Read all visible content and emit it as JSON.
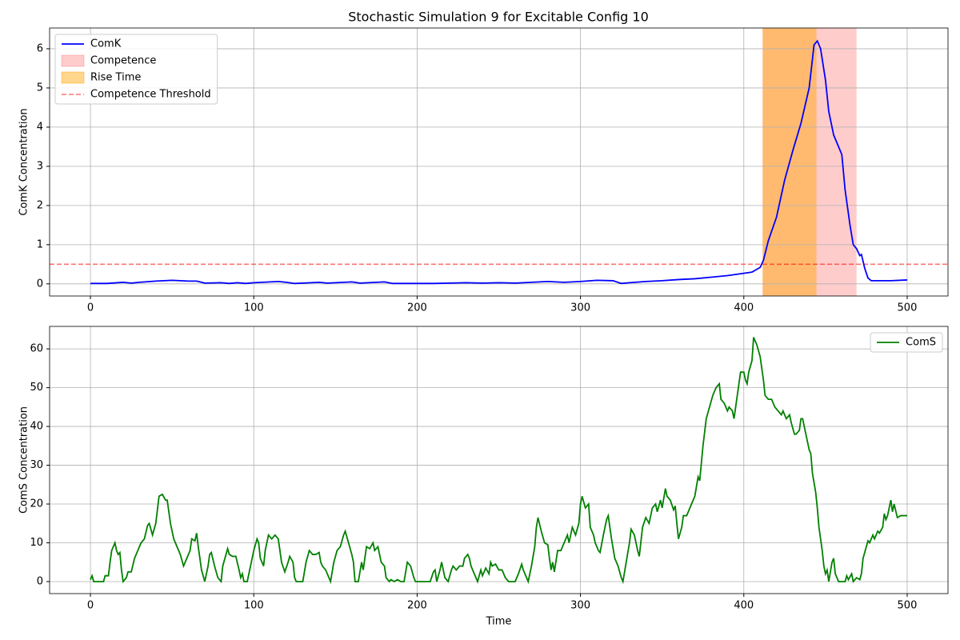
{
  "chart_data": [
    {
      "type": "line",
      "title": "Stochastic Simulation 9 for Excitable Config 10",
      "ylabel": "ComK Concentration",
      "x": [
        0,
        10,
        20,
        25,
        30,
        40,
        50,
        60,
        65,
        70,
        80,
        85,
        90,
        95,
        100,
        110,
        115,
        120,
        125,
        130,
        140,
        145,
        150,
        160,
        165,
        170,
        180,
        185,
        190,
        200,
        210,
        220,
        230,
        240,
        250,
        260,
        270,
        280,
        290,
        300,
        310,
        320,
        325,
        330,
        340,
        350,
        360,
        370,
        380,
        390,
        400,
        405,
        410,
        412,
        415,
        420,
        425,
        430,
        435,
        440,
        443,
        445,
        447,
        450,
        452,
        455,
        457,
        460,
        462,
        465,
        467,
        469,
        471,
        472,
        474,
        476,
        478,
        480,
        490,
        500
      ],
      "series": [
        {
          "name": "ComK",
          "color": "#0000ff",
          "values": [
            0.01,
            0.01,
            0.04,
            0.02,
            0.04,
            0.07,
            0.09,
            0.07,
            0.07,
            0.02,
            0.03,
            0.01,
            0.03,
            0.01,
            0.03,
            0.05,
            0.06,
            0.04,
            0.01,
            0.02,
            0.04,
            0.02,
            0.03,
            0.05,
            0.02,
            0.03,
            0.05,
            0.01,
            0.01,
            0.01,
            0.01,
            0.02,
            0.03,
            0.02,
            0.03,
            0.02,
            0.04,
            0.06,
            0.04,
            0.06,
            0.09,
            0.08,
            0.01,
            0.03,
            0.06,
            0.08,
            0.11,
            0.13,
            0.17,
            0.21,
            0.27,
            0.3,
            0.42,
            0.6,
            1.1,
            1.7,
            2.65,
            3.4,
            4.1,
            5.0,
            6.1,
            6.2,
            6.0,
            5.2,
            4.4,
            3.8,
            3.6,
            3.3,
            2.4,
            1.5,
            1.0,
            0.9,
            0.72,
            0.75,
            0.4,
            0.15,
            0.08,
            0.08,
            0.08,
            0.1
          ]
        }
      ],
      "spans": [
        {
          "name": "Competence",
          "color": "#ff0000",
          "alpha": 0.2,
          "xlim": [
            411.5,
            469
          ]
        },
        {
          "name": "Rise Time",
          "color": "#ffa500",
          "alpha": 0.45,
          "xlim": [
            411.5,
            444.5
          ]
        }
      ],
      "threshold": {
        "name": "Competence Threshold",
        "value": 0.5,
        "color": "#ff0000",
        "alpha": 0.55
      },
      "xlim": [
        -25,
        525
      ],
      "ylim": [
        -0.31,
        6.53
      ],
      "xticks": [
        0,
        100,
        200,
        300,
        400,
        500
      ],
      "yticks": [
        0,
        1,
        2,
        3,
        4,
        5,
        6
      ],
      "grid": true,
      "legend": "upper left"
    },
    {
      "type": "line",
      "xlabel": "Time",
      "ylabel": "ComS Concentration",
      "x": [
        0,
        1,
        2,
        5,
        8,
        9,
        11,
        12,
        13,
        15,
        16,
        17,
        18,
        19,
        20,
        22,
        23,
        25,
        27,
        29,
        31,
        33,
        35,
        36,
        38,
        40,
        42,
        44,
        46,
        47,
        49,
        51,
        53,
        55,
        57,
        59,
        61,
        62,
        64,
        65,
        66,
        68,
        70,
        72,
        73,
        74,
        76,
        78,
        80,
        81,
        83,
        84,
        85,
        87,
        89,
        91,
        92,
        93,
        94,
        96,
        98,
        100,
        102,
        103,
        104,
        106,
        107,
        109,
        111,
        113,
        115,
        117,
        119,
        121,
        122,
        124,
        125,
        126,
        130,
        132,
        134,
        136,
        138,
        140,
        141,
        142,
        144,
        146,
        147,
        149,
        151,
        153,
        155,
        156,
        158,
        160,
        161,
        162,
        164,
        166,
        167,
        169,
        171,
        173,
        174,
        176,
        178,
        180,
        181,
        183,
        184,
        186,
        188,
        190,
        192,
        194,
        196,
        198,
        199,
        204,
        208,
        210,
        211,
        212,
        214,
        215,
        217,
        219,
        221,
        222,
        224,
        226,
        228,
        229,
        231,
        232,
        233,
        235,
        237,
        239,
        240,
        242,
        244,
        245,
        246,
        248,
        250,
        252,
        254,
        256,
        260,
        262,
        264,
        265,
        267,
        268,
        270,
        272,
        273,
        274,
        276,
        278,
        280,
        281,
        282,
        283,
        284,
        286,
        288,
        290,
        292,
        293,
        295,
        297,
        299,
        300,
        301,
        303,
        305,
        306,
        308,
        309,
        311,
        312,
        314,
        316,
        317,
        319,
        321,
        323,
        325,
        326,
        328,
        330,
        331,
        333,
        335,
        336,
        338,
        340,
        342,
        344,
        346,
        347,
        349,
        350,
        352,
        353,
        355,
        357,
        358,
        359,
        360,
        362,
        363,
        365,
        366,
        368,
        370,
        372,
        373,
        375,
        377,
        379,
        381,
        383,
        385,
        386,
        388,
        390,
        391,
        393,
        394,
        396,
        398,
        400,
        401,
        402,
        403,
        405,
        406,
        408,
        410,
        411,
        412,
        413,
        415,
        417,
        419,
        421,
        423,
        424,
        426,
        428,
        429,
        431,
        432,
        434,
        435,
        436,
        438,
        440,
        441,
        442,
        444,
        445,
        446,
        448,
        449,
        450,
        451,
        452,
        454,
        455,
        456,
        458,
        462,
        463,
        464,
        466,
        467,
        469,
        471,
        472,
        473,
        475,
        476,
        477,
        479,
        480,
        482,
        483,
        485,
        486,
        487,
        488,
        490,
        491,
        492,
        494,
        496,
        498,
        500
      ],
      "series": [
        {
          "name": "ComS",
          "color": "#008000",
          "values": [
            0.5,
            1.5,
            0,
            0,
            0,
            1.5,
            1.5,
            5,
            8,
            10,
            8,
            7,
            7.5,
            3,
            0,
            1,
            2.5,
            2.5,
            6,
            8,
            10,
            11,
            14.5,
            15,
            12,
            15,
            22,
            22.5,
            21,
            21,
            15,
            11,
            9,
            7,
            4,
            6,
            8,
            11,
            10.5,
            12.5,
            9,
            3,
            0,
            4,
            7,
            7.5,
            4,
            1,
            0,
            4,
            7,
            8.5,
            7,
            6.5,
            6.5,
            3,
            1,
            2,
            0,
            0,
            4,
            8,
            11,
            10,
            6,
            4,
            8,
            12,
            11,
            12,
            11,
            5,
            2.5,
            5,
            6.5,
            5,
            1,
            0,
            0,
            5,
            8,
            7,
            7,
            7.5,
            5,
            4,
            3,
            1,
            0,
            5,
            8,
            9,
            12,
            13,
            10,
            7,
            5,
            0,
            0,
            5,
            3,
            9,
            8.5,
            10,
            8,
            9,
            5,
            4,
            1,
            0,
            0.5,
            0,
            0.5,
            0,
            0,
            5,
            4,
            1,
            0,
            0,
            0,
            2.5,
            3,
            0,
            3,
            5,
            1,
            0,
            3,
            4,
            3,
            4,
            4,
            6,
            7,
            6,
            4,
            2,
            0,
            3,
            1.5,
            3.5,
            2,
            5,
            4,
            4.5,
            3,
            3,
            1,
            0,
            0,
            2,
            4.5,
            3,
            1,
            0,
            4,
            9,
            14,
            16.5,
            13,
            10,
            9.5,
            6,
            3,
            5,
            2.5,
            8,
            8,
            10,
            12,
            10,
            14,
            12,
            15,
            20,
            22,
            19,
            20,
            14,
            12,
            10,
            8,
            7.5,
            12,
            16,
            17,
            11,
            6,
            4,
            1,
            0,
            5,
            10,
            13.5,
            12,
            8,
            6.5,
            14,
            16.5,
            15,
            19,
            20,
            18,
            21,
            19,
            24,
            22,
            21,
            18.5,
            19.5,
            15,
            11,
            14,
            17,
            17,
            18,
            20,
            22,
            27,
            26,
            35,
            42,
            45,
            48,
            50,
            51,
            47,
            46,
            44,
            45,
            44,
            42,
            48,
            54,
            54,
            52,
            51,
            54,
            57,
            63,
            61,
            58,
            55,
            52,
            48,
            47,
            47,
            45,
            44,
            43,
            44,
            42,
            43,
            41,
            38,
            38,
            39,
            42,
            42,
            38,
            34,
            33,
            28,
            23,
            19,
            14,
            8,
            4,
            2,
            3,
            0,
            5,
            6,
            2,
            0,
            0,
            1.5,
            0.5,
            2,
            0,
            1,
            0.5,
            2,
            6,
            9,
            10.5,
            10,
            12,
            11,
            13,
            12.5,
            14,
            17.5,
            16,
            17,
            21,
            18,
            20,
            16.5,
            17,
            17,
            17
          ]
        }
      ],
      "xlim": [
        -25,
        525
      ],
      "ylim": [
        -3.1,
        65.8
      ],
      "xticks": [
        0,
        100,
        200,
        300,
        400,
        500
      ],
      "yticks": [
        0,
        10,
        20,
        30,
        40,
        50,
        60
      ],
      "grid": true,
      "legend": "upper right"
    }
  ]
}
